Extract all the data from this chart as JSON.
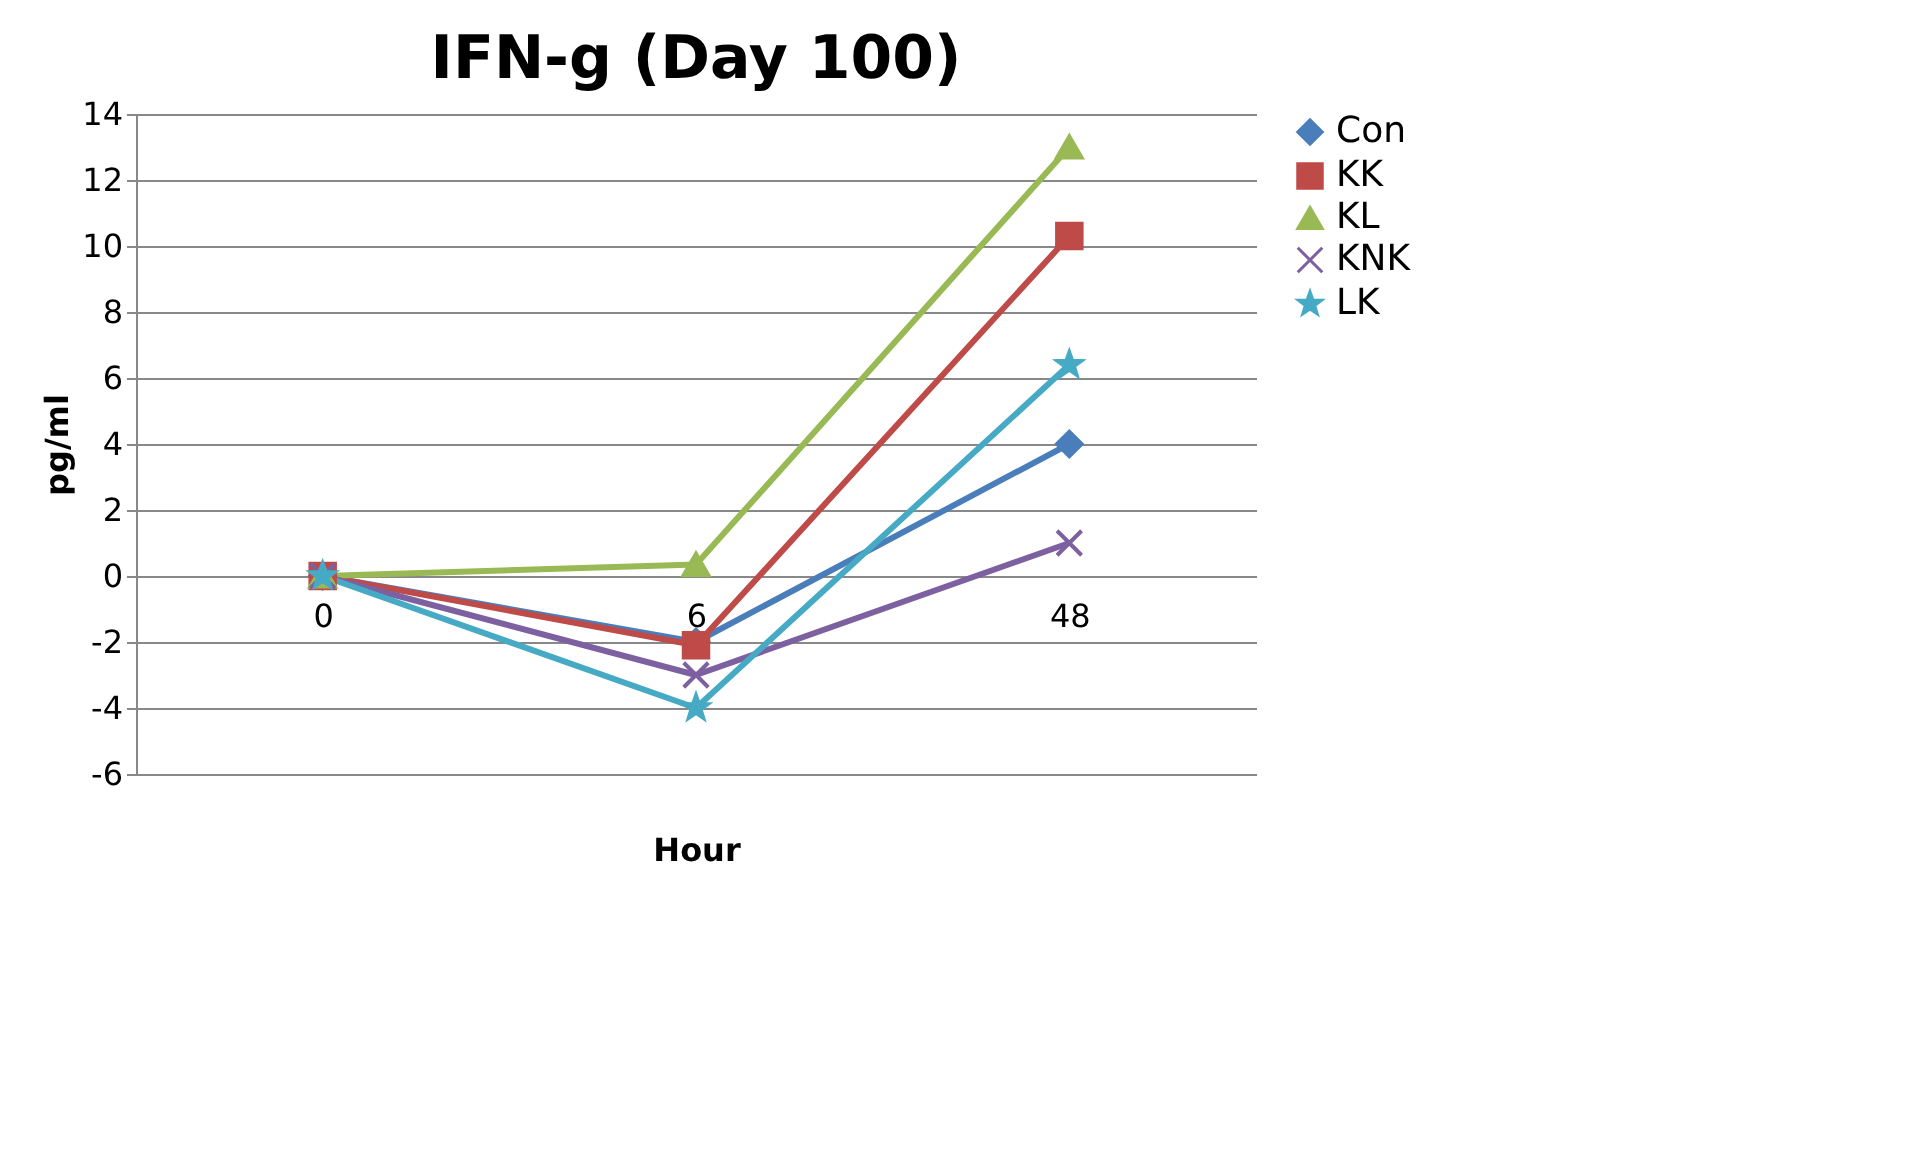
{
  "chart_data": {
    "type": "line",
    "title": "IFN-g (Day 100)",
    "xlabel": "Hour",
    "ylabel": "pg/ml",
    "categories": [
      "0",
      "6",
      "48"
    ],
    "series": [
      {
        "name": "Con",
        "color": "#4a7ebb",
        "marker": "diamond",
        "values": [
          0,
          -2,
          4
        ]
      },
      {
        "name": "KK",
        "color": "#be4b48",
        "marker": "square",
        "values": [
          0,
          -2.1,
          10.3
        ]
      },
      {
        "name": "KL",
        "color": "#98b954",
        "marker": "triangle",
        "values": [
          0,
          0.35,
          13
        ]
      },
      {
        "name": "KNK",
        "color": "#7d60a0",
        "marker": "cross",
        "values": [
          0,
          -3,
          1
        ]
      },
      {
        "name": "LK",
        "color": "#46aac5",
        "marker": "star",
        "values": [
          0,
          -4,
          6.4
        ]
      }
    ],
    "ylim": [
      -6,
      14
    ],
    "yticks": [
      -6,
      -4,
      -2,
      0,
      2,
      4,
      6,
      8,
      10,
      12,
      14
    ],
    "grid": "y",
    "legend": "right",
    "line_style": "solid"
  }
}
